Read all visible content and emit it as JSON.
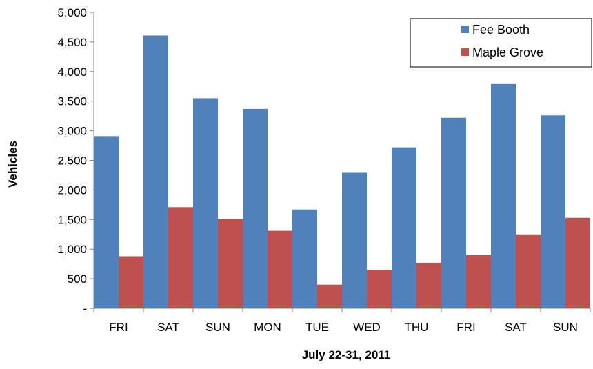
{
  "chart_data": {
    "type": "bar",
    "title": "",
    "xlabel": "July 22-31, 2011",
    "ylabel": "Vehicles",
    "categories": [
      "FRI",
      "SAT",
      "SUN",
      "MON",
      "TUE",
      "WED",
      "THU",
      "FRI",
      "SAT",
      "SUN"
    ],
    "series": [
      {
        "name": "Fee Booth",
        "color": "#4F81BD",
        "values": [
          2910,
          4610,
          3550,
          3370,
          1670,
          2290,
          2720,
          3220,
          3790,
          3260
        ]
      },
      {
        "name": "Maple Grove",
        "color": "#C0504D",
        "values": [
          880,
          1710,
          1510,
          1310,
          400,
          650,
          770,
          900,
          1250,
          1530
        ]
      }
    ],
    "ylim": [
      0,
      5000
    ],
    "yticks": [
      0,
      500,
      1000,
      1500,
      2000,
      2500,
      3000,
      3500,
      4000,
      4500,
      5000
    ],
    "ytick_labels": [
      "-",
      "500",
      "1,000",
      "1,500",
      "2,000",
      "2,500",
      "3,000",
      "3,500",
      "4,000",
      "4,500",
      "5,000"
    ],
    "grid": false,
    "legend_position": "top-right"
  }
}
